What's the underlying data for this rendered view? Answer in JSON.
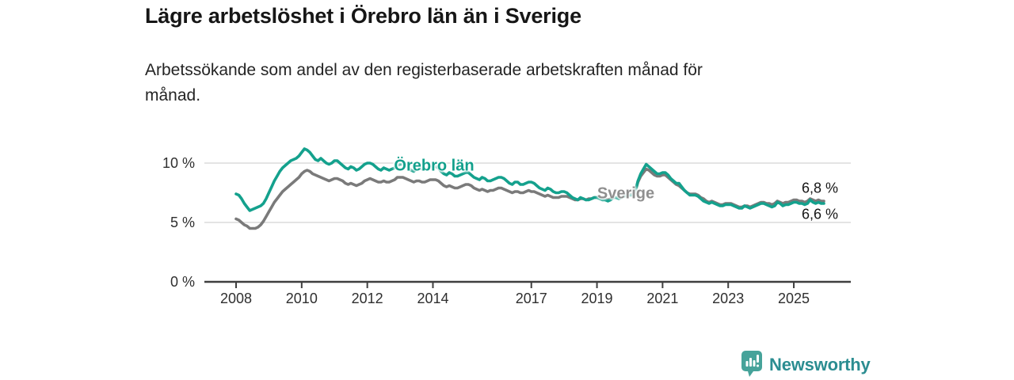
{
  "header": {
    "title": "Lägre arbetslöshet i Örebro län än i Sverige",
    "subtitle_lines": [
      "Arbetssökande som andel av den registerbaserade arbetskraften månad för",
      "månad."
    ]
  },
  "chart_data": {
    "type": "line",
    "unit": "%",
    "x_start_year": 2008,
    "points_per_year": 12,
    "x_tick_years": [
      2008,
      2010,
      2012,
      2014,
      2017,
      2019,
      2021,
      2023,
      2025
    ],
    "x_tick_labels": [
      "2008",
      "2010",
      "2012",
      "2014",
      "2017",
      "2019",
      "2021",
      "2023",
      "2025"
    ],
    "y_ticks": [
      {
        "value": 0,
        "label": "0 %"
      },
      {
        "value": 5,
        "label": "5 %"
      },
      {
        "value": 10,
        "label": "10 %"
      }
    ],
    "ylim": [
      0,
      12
    ],
    "grid": "horizontal",
    "legend": "inline-labels",
    "series": [
      {
        "name": "Sverige",
        "color": "#7a7a7a",
        "label_color": "#8f8f8f",
        "end_label": "6,8 %",
        "label_pos": {
          "x": 790,
          "y": 245
        },
        "values": [
          5.3,
          5.2,
          5.0,
          4.8,
          4.7,
          4.5,
          4.5,
          4.5,
          4.6,
          4.8,
          5.1,
          5.5,
          5.9,
          6.3,
          6.7,
          7.0,
          7.3,
          7.6,
          7.8,
          8.0,
          8.2,
          8.4,
          8.6,
          8.8,
          9.1,
          9.3,
          9.4,
          9.3,
          9.1,
          9.0,
          8.9,
          8.8,
          8.7,
          8.6,
          8.5,
          8.6,
          8.7,
          8.7,
          8.6,
          8.5,
          8.3,
          8.2,
          8.3,
          8.2,
          8.1,
          8.2,
          8.3,
          8.5,
          8.6,
          8.7,
          8.6,
          8.5,
          8.4,
          8.4,
          8.5,
          8.4,
          8.4,
          8.5,
          8.6,
          8.8,
          8.8,
          8.8,
          8.7,
          8.6,
          8.5,
          8.4,
          8.5,
          8.5,
          8.4,
          8.4,
          8.5,
          8.6,
          8.6,
          8.6,
          8.5,
          8.3,
          8.1,
          8.0,
          8.1,
          8.0,
          7.9,
          7.9,
          8.0,
          8.1,
          8.2,
          8.2,
          8.1,
          7.9,
          7.8,
          7.7,
          7.8,
          7.7,
          7.6,
          7.7,
          7.7,
          7.8,
          7.9,
          7.9,
          7.8,
          7.7,
          7.6,
          7.5,
          7.6,
          7.6,
          7.5,
          7.5,
          7.6,
          7.7,
          7.6,
          7.6,
          7.5,
          7.4,
          7.3,
          7.2,
          7.3,
          7.2,
          7.1,
          7.1,
          7.1,
          7.2,
          7.2,
          7.2,
          7.1,
          7.0,
          6.9,
          6.9,
          7.0,
          7.0,
          6.9,
          7.0,
          7.0,
          7.1,
          7.1,
          7.1,
          7.0,
          7.0,
          6.9,
          7.0,
          7.1,
          7.1,
          7.1,
          7.2,
          7.3,
          7.4,
          7.4,
          7.4,
          7.6,
          8.4,
          8.9,
          9.2,
          9.5,
          9.4,
          9.2,
          9.0,
          8.9,
          8.9,
          9.0,
          9.0,
          8.8,
          8.6,
          8.4,
          8.2,
          8.1,
          7.9,
          7.7,
          7.5,
          7.4,
          7.4,
          7.4,
          7.3,
          7.1,
          7.0,
          6.8,
          6.7,
          6.8,
          6.7,
          6.6,
          6.5,
          6.5,
          6.6,
          6.6,
          6.6,
          6.5,
          6.4,
          6.3,
          6.3,
          6.4,
          6.4,
          6.3,
          6.4,
          6.5,
          6.6,
          6.7,
          6.7,
          6.6,
          6.6,
          6.5,
          6.6,
          6.8,
          6.7,
          6.6,
          6.7,
          6.7,
          6.8,
          6.9,
          6.9,
          6.8,
          6.8,
          6.7,
          6.8,
          7.0,
          6.9,
          6.8,
          6.9,
          6.8,
          6.8
        ]
      },
      {
        "name": "Örebro län",
        "color": "#14a18d",
        "label_color": "#12a08c",
        "end_label": "6,6 %",
        "label_pos": {
          "x": 548,
          "y": 210
        },
        "values": [
          7.4,
          7.3,
          7.0,
          6.6,
          6.3,
          6.0,
          6.1,
          6.2,
          6.3,
          6.4,
          6.6,
          7.0,
          7.5,
          8.0,
          8.5,
          8.9,
          9.3,
          9.6,
          9.8,
          10.0,
          10.2,
          10.3,
          10.4,
          10.6,
          10.9,
          11.2,
          11.1,
          10.9,
          10.6,
          10.3,
          10.2,
          10.4,
          10.2,
          10.0,
          9.9,
          10.0,
          10.2,
          10.2,
          10.0,
          9.8,
          9.6,
          9.5,
          9.7,
          9.6,
          9.4,
          9.5,
          9.7,
          9.9,
          10.0,
          10.0,
          9.9,
          9.7,
          9.5,
          9.4,
          9.6,
          9.5,
          9.4,
          9.5,
          9.6,
          9.8,
          9.9,
          9.9,
          9.8,
          9.6,
          9.4,
          9.3,
          9.5,
          9.6,
          9.5,
          9.5,
          9.6,
          9.7,
          9.7,
          9.7,
          9.6,
          9.3,
          9.1,
          9.0,
          9.2,
          9.1,
          8.9,
          8.9,
          9.0,
          9.1,
          9.2,
          9.2,
          9.0,
          8.8,
          8.7,
          8.6,
          8.8,
          8.7,
          8.5,
          8.5,
          8.6,
          8.7,
          8.8,
          8.8,
          8.7,
          8.5,
          8.3,
          8.2,
          8.4,
          8.4,
          8.2,
          8.2,
          8.3,
          8.4,
          8.4,
          8.3,
          8.1,
          7.9,
          7.8,
          7.7,
          7.9,
          7.8,
          7.6,
          7.5,
          7.5,
          7.6,
          7.6,
          7.5,
          7.3,
          7.1,
          7.0,
          6.9,
          7.1,
          7.0,
          6.9,
          6.9,
          7.0,
          7.1,
          7.1,
          7.0,
          6.9,
          6.9,
          6.8,
          6.9,
          7.1,
          7.1,
          7.0,
          7.1,
          7.2,
          7.3,
          7.3,
          7.3,
          7.6,
          8.5,
          9.1,
          9.5,
          9.9,
          9.7,
          9.5,
          9.3,
          9.1,
          9.1,
          9.2,
          9.2,
          9.0,
          8.7,
          8.5,
          8.3,
          8.3,
          8.0,
          7.7,
          7.5,
          7.3,
          7.3,
          7.3,
          7.2,
          7.0,
          6.8,
          6.7,
          6.6,
          6.7,
          6.6,
          6.5,
          6.4,
          6.4,
          6.5,
          6.5,
          6.5,
          6.4,
          6.3,
          6.2,
          6.2,
          6.4,
          6.3,
          6.2,
          6.3,
          6.4,
          6.5,
          6.6,
          6.6,
          6.5,
          6.4,
          6.3,
          6.4,
          6.7,
          6.6,
          6.4,
          6.5,
          6.5,
          6.6,
          6.7,
          6.7,
          6.6,
          6.6,
          6.5,
          6.6,
          6.9,
          6.7,
          6.6,
          6.7,
          6.6,
          6.6
        ]
      }
    ]
  },
  "footer": {
    "brand": "Newsworthy",
    "logo_icon": "newsworthy-pin-barchart-icon"
  }
}
